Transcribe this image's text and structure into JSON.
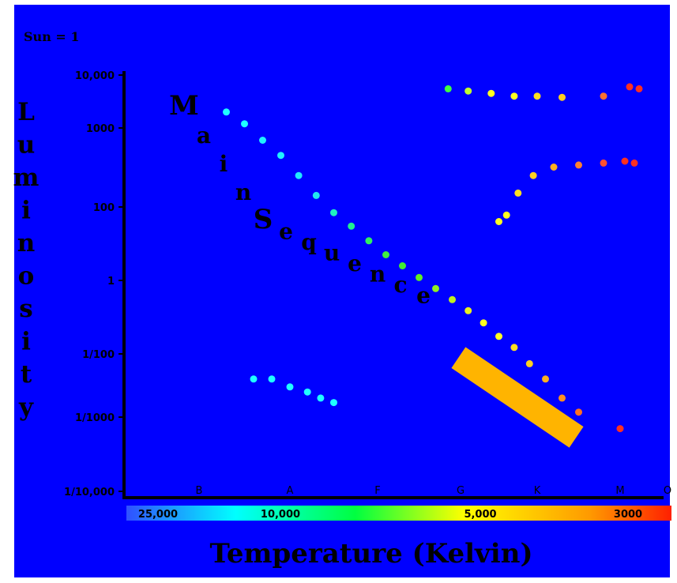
{
  "chart_data": {
    "type": "scatter",
    "title": "",
    "unit_note": "Sun = 1",
    "ylabel": "Luminosity",
    "xlabel": "Temperature  (Kelvin)",
    "y_scale": "log",
    "y_ticks": [
      {
        "value": 10000,
        "label": "10,000"
      },
      {
        "value": 1000,
        "label": "1000"
      },
      {
        "value": 100,
        "label": "100"
      },
      {
        "value": 1,
        "label": "1"
      },
      {
        "value": 0.01,
        "label": "1/100"
      },
      {
        "value": 0.001,
        "label": "1/1000"
      },
      {
        "value": 0.0001,
        "label": "1/10,000"
      }
    ],
    "spectral_classes": [
      "B",
      "A",
      "F",
      "G",
      "K",
      "M",
      "O"
    ],
    "temperature_labels": [
      "25,000",
      "10,000",
      "5,000",
      "3000"
    ],
    "annotation": "Main Sequence",
    "colors": {
      "background": "#0000ff",
      "frame": "#ffffff",
      "axis": "#000000",
      "label_text": "#000000",
      "highlight_bar": "#ffb400",
      "temperature_gradient": [
        "#3050ff",
        "#00ffff",
        "#00ff40",
        "#ffff00",
        "#ff7a00",
        "#ff2000"
      ]
    },
    "series": [
      {
        "group": "main-sequence",
        "points": [
          {
            "spectral_class_index": 0.3,
            "luminosity": 2000,
            "color": "#20ffff"
          },
          {
            "spectral_class_index": 0.5,
            "luminosity": 1200,
            "color": "#20ffff"
          },
          {
            "spectral_class_index": 0.7,
            "luminosity": 700,
            "color": "#20f0ff"
          },
          {
            "spectral_class_index": 0.9,
            "luminosity": 450,
            "color": "#20f0ff"
          },
          {
            "spectral_class_index": 1.1,
            "luminosity": 250,
            "color": "#20e8ff"
          },
          {
            "spectral_class_index": 1.3,
            "luminosity": 140,
            "color": "#20e8f0"
          },
          {
            "spectral_class_index": 1.5,
            "luminosity": 70,
            "color": "#20f0c0"
          },
          {
            "spectral_class_index": 1.7,
            "luminosity": 30,
            "color": "#20f090"
          },
          {
            "spectral_class_index": 1.9,
            "luminosity": 12,
            "color": "#30f060"
          },
          {
            "spectral_class_index": 2.1,
            "luminosity": 5,
            "color": "#40f040"
          },
          {
            "spectral_class_index": 2.3,
            "luminosity": 2.5,
            "color": "#40f030"
          },
          {
            "spectral_class_index": 2.5,
            "luminosity": 1.2,
            "color": "#60f020"
          },
          {
            "spectral_class_index": 2.7,
            "luminosity": 0.6,
            "color": "#90f020"
          },
          {
            "spectral_class_index": 2.9,
            "luminosity": 0.3,
            "color": "#c0f020"
          },
          {
            "spectral_class_index": 3.1,
            "luminosity": 0.15,
            "color": "#e8f020"
          },
          {
            "spectral_class_index": 3.3,
            "luminosity": 0.07,
            "color": "#ffff20"
          },
          {
            "spectral_class_index": 3.5,
            "luminosity": 0.03,
            "color": "#ffff20"
          },
          {
            "spectral_class_index": 3.7,
            "luminosity": 0.015,
            "color": "#ffe020"
          },
          {
            "spectral_class_index": 3.9,
            "luminosity": 0.007,
            "color": "#ffd020"
          },
          {
            "spectral_class_index": 4.1,
            "luminosity": 0.004,
            "color": "#ffb020"
          },
          {
            "spectral_class_index": 4.3,
            "luminosity": 0.002,
            "color": "#ff9020"
          },
          {
            "spectral_class_index": 4.5,
            "luminosity": 0.0012,
            "color": "#ff7020"
          },
          {
            "spectral_class_index": 5.0,
            "luminosity": 0.0007,
            "color": "#ff3020"
          }
        ]
      },
      {
        "group": "supergiants",
        "points": [
          {
            "spectral_class_index": 2.85,
            "luminosity": 5500,
            "color": "#40ff40"
          },
          {
            "spectral_class_index": 3.1,
            "luminosity": 5000,
            "color": "#c0ff30"
          },
          {
            "spectral_class_index": 3.4,
            "luminosity": 4500,
            "color": "#ffff20"
          },
          {
            "spectral_class_index": 3.7,
            "luminosity": 4000,
            "color": "#ffff20"
          },
          {
            "spectral_class_index": 4.0,
            "luminosity": 4000,
            "color": "#ffe020"
          },
          {
            "spectral_class_index": 4.3,
            "luminosity": 3800,
            "color": "#ffd020"
          },
          {
            "spectral_class_index": 4.8,
            "luminosity": 4000,
            "color": "#ff7030"
          },
          {
            "spectral_class_index": 5.2,
            "luminosity": 6000,
            "color": "#ff3020"
          },
          {
            "spectral_class_index": 5.4,
            "luminosity": 5500,
            "color": "#ff3020"
          }
        ]
      },
      {
        "group": "giants",
        "points": [
          {
            "spectral_class_index": 3.5,
            "luminosity": 40,
            "color": "#ffff20"
          },
          {
            "spectral_class_index": 3.6,
            "luminosity": 60,
            "color": "#ffff20"
          },
          {
            "spectral_class_index": 3.75,
            "luminosity": 150,
            "color": "#ffe020"
          },
          {
            "spectral_class_index": 3.95,
            "luminosity": 250,
            "color": "#ffd020"
          },
          {
            "spectral_class_index": 4.2,
            "luminosity": 320,
            "color": "#ffb020"
          },
          {
            "spectral_class_index": 4.5,
            "luminosity": 340,
            "color": "#ff8030"
          },
          {
            "spectral_class_index": 4.8,
            "luminosity": 360,
            "color": "#ff5030"
          },
          {
            "spectral_class_index": 5.1,
            "luminosity": 380,
            "color": "#ff3020"
          },
          {
            "spectral_class_index": 5.3,
            "luminosity": 360,
            "color": "#ff3020"
          }
        ]
      },
      {
        "group": "white-dwarfs",
        "points": [
          {
            "spectral_class_index": 0.6,
            "luminosity": 0.004,
            "color": "#20ffff"
          },
          {
            "spectral_class_index": 0.8,
            "luminosity": 0.004,
            "color": "#20ffff"
          },
          {
            "spectral_class_index": 1.0,
            "luminosity": 0.003,
            "color": "#20ffff"
          },
          {
            "spectral_class_index": 1.2,
            "luminosity": 0.0025,
            "color": "#20ffff"
          },
          {
            "spectral_class_index": 1.35,
            "luminosity": 0.002,
            "color": "#20ffff"
          },
          {
            "spectral_class_index": 1.5,
            "luminosity": 0.0017,
            "color": "#20ffff"
          }
        ]
      }
    ]
  }
}
